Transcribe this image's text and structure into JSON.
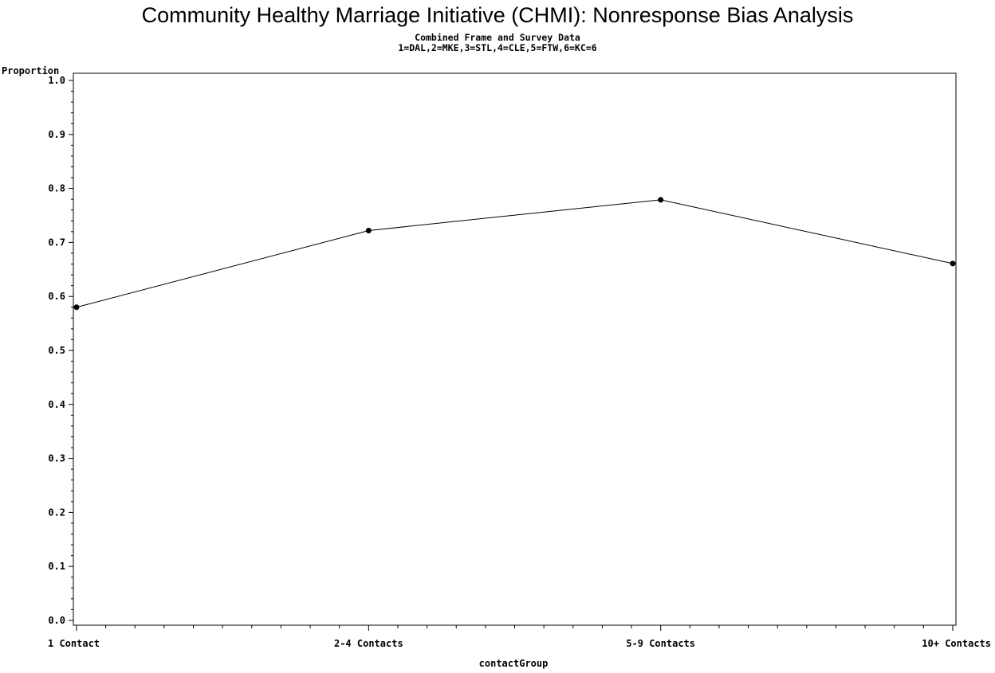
{
  "title": "Community Healthy Marriage Initiative (CHMI): Nonresponse Bias Analysis",
  "subtitle1": "Combined Frame and Survey Data",
  "subtitle2": "1=DAL,2=MKE,3=STL,4=CLE,5=FTW,6=KC=6",
  "chart_data": {
    "type": "line",
    "title": "Community Healthy Marriage Initiative (CHMI): Nonresponse Bias Analysis",
    "ylabel": "Proportion",
    "xlabel": "contactGroup",
    "categories": [
      "1 Contact",
      "2-4 Contacts",
      "5-9 Contacts",
      "10+ Contacts"
    ],
    "values": [
      0.58,
      0.722,
      0.779,
      0.661
    ],
    "ylim": [
      0.0,
      1.0
    ],
    "yticks": [
      "0.0",
      "0.1",
      "0.2",
      "0.3",
      "0.4",
      "0.5",
      "0.6",
      "0.7",
      "0.8",
      "0.9",
      "1.0"
    ],
    "grid": false,
    "line_color": "#000000",
    "marker_color": "#000000"
  }
}
